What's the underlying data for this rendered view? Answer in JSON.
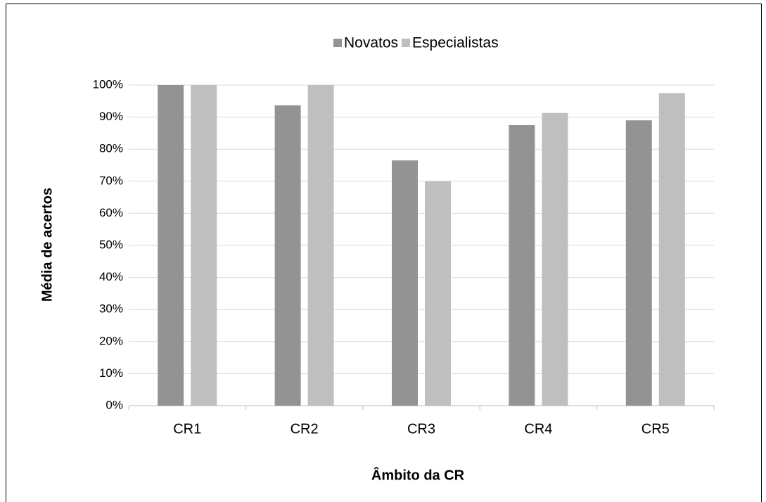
{
  "chart_data": {
    "type": "bar",
    "xlabel": "Âmbito da CR",
    "ylabel": "Média de acertos",
    "categories": [
      "CR1",
      "CR2",
      "CR3",
      "CR4",
      "CR5"
    ],
    "series": [
      {
        "name": "Novatos",
        "color": "#939393",
        "values": [
          100,
          93.7,
          76.5,
          87.5,
          89
        ]
      },
      {
        "name": "Especialistas",
        "color": "#bfbfbf",
        "values": [
          100,
          100,
          70,
          91.3,
          97.5
        ]
      }
    ],
    "ylim": [
      0,
      100
    ],
    "yticks": [
      {
        "value": 0,
        "label": "0%"
      },
      {
        "value": 10,
        "label": "10%"
      },
      {
        "value": 20,
        "label": "20%"
      },
      {
        "value": 30,
        "label": "30%"
      },
      {
        "value": 40,
        "label": "40%"
      },
      {
        "value": 50,
        "label": "50%"
      },
      {
        "value": 60,
        "label": "60%"
      },
      {
        "value": 70,
        "label": "70%"
      },
      {
        "value": 80,
        "label": "80%"
      },
      {
        "value": 90,
        "label": "90%"
      },
      {
        "value": 100,
        "label": "100%"
      }
    ],
    "grid": true,
    "legend": "top"
  }
}
